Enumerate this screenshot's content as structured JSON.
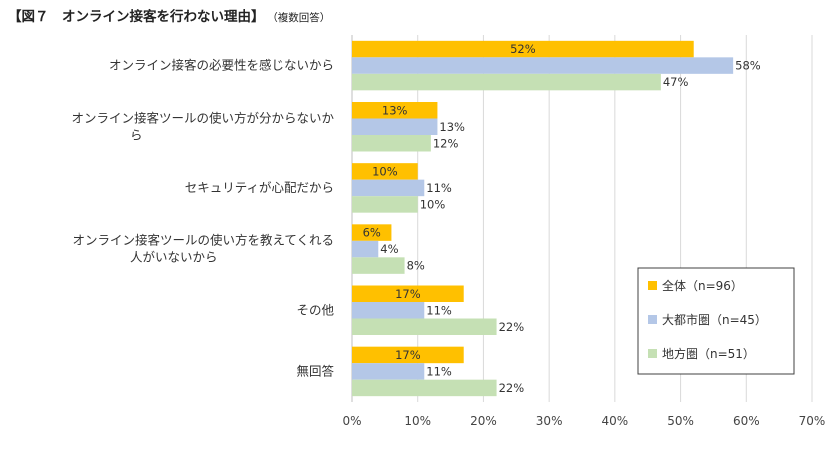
{
  "header": {
    "title": "【図７　オンライン接客を行わない理由】",
    "note": "（複数回答）"
  },
  "chart_data": {
    "type": "bar",
    "orientation": "horizontal",
    "title": "【図７　オンライン接客を行わない理由】",
    "subtitle": "（複数回答）",
    "categories": [
      [
        "オンライン接客の必要性を感じないから"
      ],
      [
        "オンライン接客ツールの使い方が分からないか",
        "ら"
      ],
      [
        "セキュリティが心配だから"
      ],
      [
        "オンライン接客ツールの使い方を教えてくれる",
        "人がいないから"
      ],
      [
        "その他"
      ],
      [
        "無回答"
      ]
    ],
    "series": [
      {
        "name": "全体（n=96）",
        "color": "#FFC000",
        "values": [
          52,
          13,
          10,
          6,
          17,
          17
        ]
      },
      {
        "name": "大都市圏（n=45）",
        "color": "#B4C7E7",
        "values": [
          58,
          13,
          11,
          4,
          11,
          11
        ]
      },
      {
        "name": "地方圏（n=51）",
        "color": "#C5E0B4",
        "values": [
          47,
          12,
          10,
          8,
          22,
          22
        ]
      }
    ],
    "xlim": [
      0,
      70
    ],
    "xticks": [
      0,
      10,
      20,
      30,
      40,
      50,
      60,
      70
    ],
    "tick_format": "%",
    "grid": true,
    "legend_position": "bottom-right"
  }
}
